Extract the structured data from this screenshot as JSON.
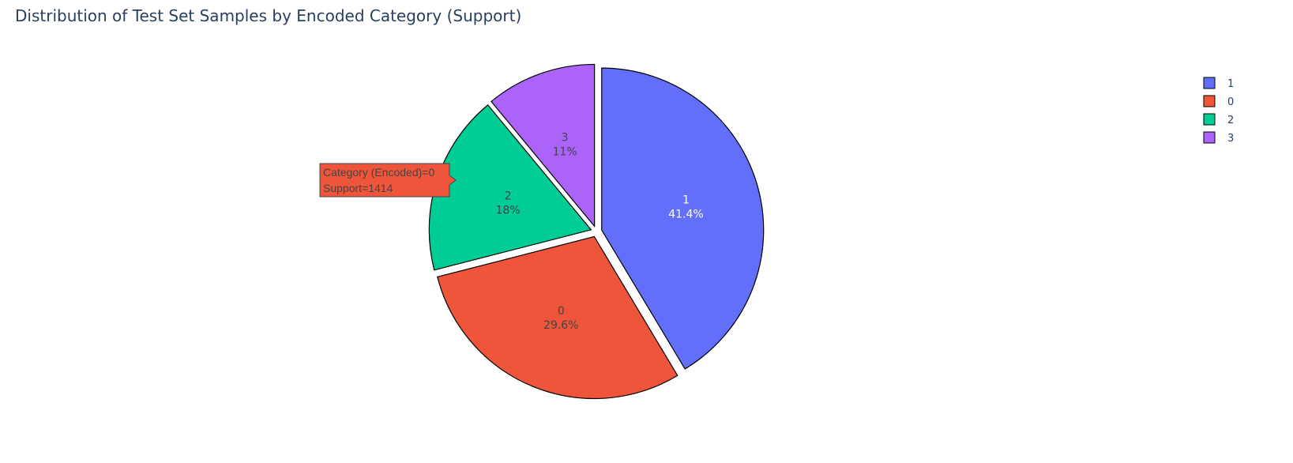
{
  "chart_data": {
    "type": "pie",
    "title": "Distribution of Test Set Samples by Encoded Category (Support)",
    "slices": [
      {
        "label": "1",
        "percent": "41.4%",
        "value": 41.4,
        "color": "#636efa",
        "text_color": "#ffffff",
        "pulled": true
      },
      {
        "label": "0",
        "percent": "29.6%",
        "value": 29.6,
        "color": "#ef553b",
        "text_color": "#444444",
        "pulled": true
      },
      {
        "label": "2",
        "percent": "18%",
        "value": 18.0,
        "color": "#00cc96",
        "text_color": "#444444",
        "pulled": true
      },
      {
        "label": "3",
        "percent": "11%",
        "value": 11.0,
        "color": "#ab63fa",
        "text_color": "#444444",
        "pulled": true
      }
    ],
    "legend": {
      "position": "top-right",
      "items": [
        "1",
        "0",
        "2",
        "3"
      ]
    },
    "hover": {
      "slice": "0",
      "lines": [
        "Category (Encoded)=0",
        "Support=1414"
      ]
    }
  }
}
